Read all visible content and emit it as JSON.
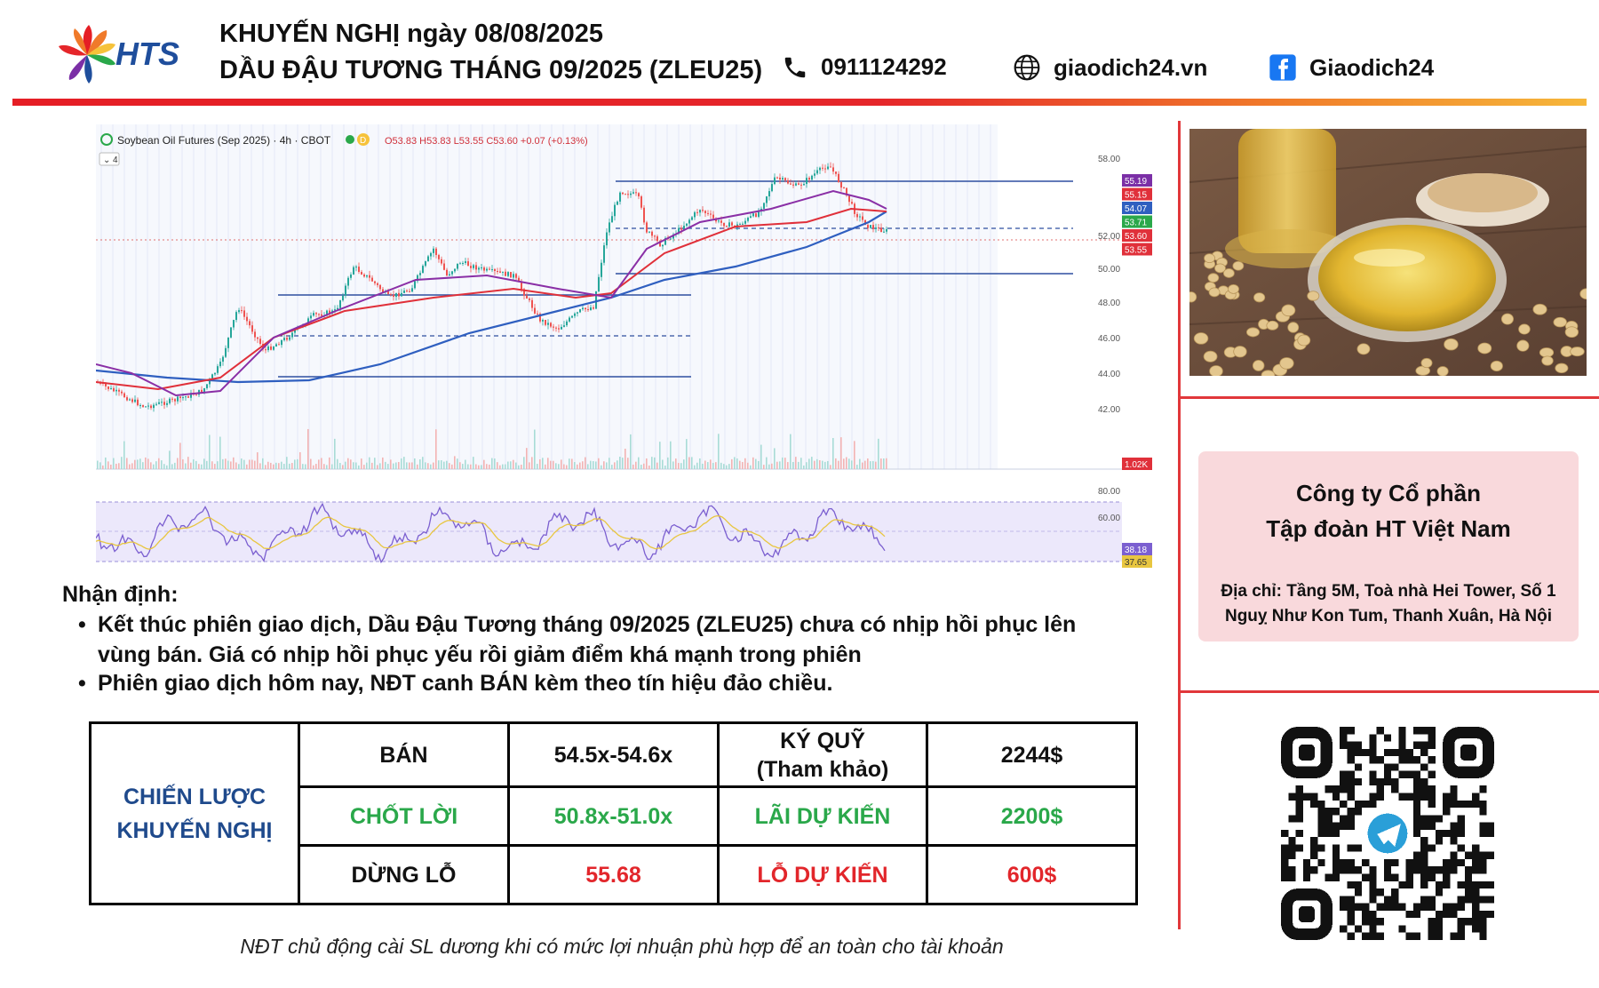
{
  "header": {
    "brand": "HTS",
    "title_line1": "KHUYẾN NGHỊ ngày 08/08/2025",
    "title_line2": "DẦU ĐẬU TƯƠNG THÁNG 09/2025 (ZLEU25)",
    "phone": "0911124292",
    "website": "giaodich24.vn",
    "facebook": "Giaodich24",
    "icons": [
      "phone-icon",
      "globe-icon",
      "facebook-icon"
    ],
    "bar_colors": [
      "#e51e25",
      "#f6b73a"
    ]
  },
  "chart": {
    "title": "Soybean Oil Futures (Sep 2025) · 4h · CBOT",
    "ohlc": "O53.83 H53.83 L53.55 C53.60 +0.07 (+0.13%)",
    "indicator_count": "4",
    "badge": "D"
  },
  "chart_data": {
    "type": "line",
    "y_ticks": [
      "58.00",
      "52.00",
      "50.00",
      "48.00",
      "46.00",
      "44.00",
      "42.00"
    ],
    "price_labels": [
      {
        "text": "55.19",
        "color": "#7b2fa6"
      },
      {
        "text": "55.15",
        "color": "#e0303a"
      },
      {
        "text": "54.07",
        "color": "#2f5fc0"
      },
      {
        "text": "53.71",
        "color": "#2aa84a"
      },
      {
        "text": "53.60",
        "color": "#e0303a"
      },
      {
        "text": "53.55",
        "color": "#e0303a"
      }
    ],
    "volume_label": "1.02K",
    "rsi_ticks": [
      "80.00",
      "60.00"
    ],
    "rsi_labels": [
      {
        "text": "38.18",
        "color": "#7b5fd0"
      },
      {
        "text": "37.65",
        "color": "#e8c640"
      }
    ]
  },
  "analysis": {
    "title": "Nhận định:",
    "bullets": [
      {
        "line1": "Kết thúc phiên giao dịch, Dầu Đậu Tương tháng 09/2025 (ZLEU25) chưa có nhịp hồi phục lên",
        "line2": "vùng bán. Giá có nhịp hồi phục yếu rồi giảm điểm khá mạnh trong phiên"
      },
      {
        "line1": "Phiên giao dịch hôm nay, NĐT canh BÁN kèm theo tín hiệu đảo chiều."
      }
    ]
  },
  "strategy": {
    "label_line1": "CHIẾN LƯỢC",
    "label_line2": "KHUYẾN NGHỊ",
    "row1": {
      "action": "BÁN",
      "price": "54.5x-54.6x",
      "margin_line1": "KÝ QUỸ",
      "margin_line2": "(Tham khảo)",
      "margin_value": "2244$"
    },
    "row2": {
      "action": "CHỐT LỜI",
      "price": "50.8x-51.0x",
      "profit_label": "LÃI DỰ KIẾN",
      "profit_value": "2200$"
    },
    "row3": {
      "action": "DỪNG LỖ",
      "price": "55.68",
      "loss_label": "LỖ DỰ KIẾN",
      "loss_value": "600$"
    }
  },
  "footnote": "NĐT chủ động cài SL dương khi có mức lợi nhuận phù hợp để an toàn cho tài khoản",
  "company": {
    "name_line1": "Công ty Cổ phần",
    "name_line2": "Tập đoàn HT Việt Nam",
    "address_line1": "Địa chỉ: Tầng 5M, Toà nhà Hei Tower, Số 1",
    "address_line2": "Nguỵ Như Kon Tum, Thanh Xuân, Hà Nội"
  }
}
